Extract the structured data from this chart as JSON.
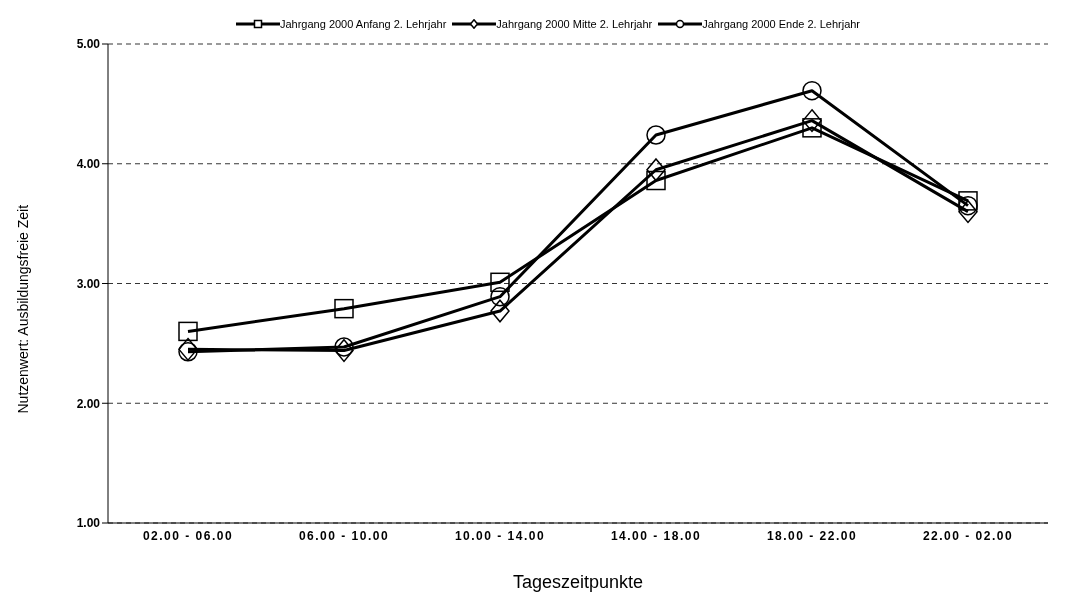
{
  "chart_data": {
    "type": "line",
    "xlabel": "Tageszeitpunkte",
    "ylabel": "Nutzenwert: Ausbildungsfreie Zeit",
    "categories": [
      "02.00 - 06.00",
      "06.00 - 10.00",
      "10.00 - 14.00",
      "14.00 - 18.00",
      "18.00 - 22.00",
      "22.00 - 02.00"
    ],
    "series": [
      {
        "name": "Jahrgang 2000 Anfang 2. Lehrjahr",
        "color": "#000000",
        "marker": "square",
        "values": [
          2.6,
          2.79,
          3.01,
          3.86,
          4.3,
          3.69
        ]
      },
      {
        "name": "Jahrgang 2000 Mitte 2. Lehrjahr",
        "color": "#000000",
        "marker": "diamond",
        "values": [
          2.45,
          2.44,
          2.77,
          3.95,
          4.36,
          3.6
        ]
      },
      {
        "name": "Jahrgang 2000 Ende 2. Lehrjahr",
        "color": "#000000",
        "marker": "circle",
        "values": [
          2.43,
          2.47,
          2.89,
          4.24,
          4.61,
          3.65
        ]
      }
    ],
    "ylim": [
      1,
      5
    ],
    "yticks": [
      {
        "value": 1,
        "label": "1.00"
      },
      {
        "value": 2,
        "label": "2.00"
      },
      {
        "value": 3,
        "label": "3.00"
      },
      {
        "value": 4,
        "label": "4.00"
      },
      {
        "value": 5,
        "label": "5.00"
      }
    ],
    "grid": "y",
    "legend": "top",
    "line_style": "solid"
  }
}
